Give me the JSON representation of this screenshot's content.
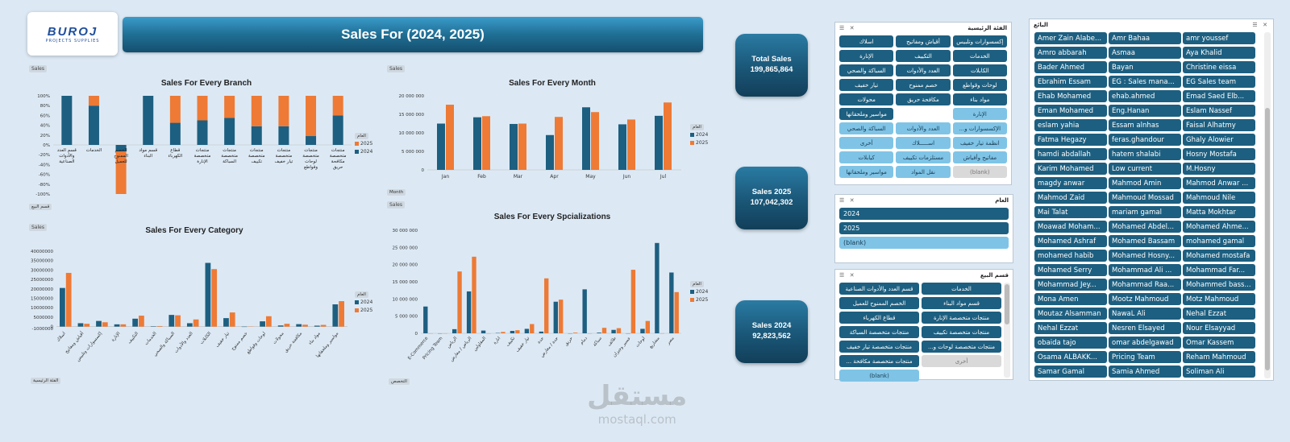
{
  "logo": {
    "main": "BUROJ",
    "sub": "PROJECTS SUPPLIES"
  },
  "title": "Sales For (2024, 2025)",
  "kpis": [
    {
      "label": "Total Sales",
      "value": "199,865,864"
    },
    {
      "label": "Sales 2025",
      "value": "107,042,302"
    },
    {
      "label": "Sales 2024",
      "value": "92,823,562"
    }
  ],
  "tag": "Sales",
  "colors": {
    "y2024": "#1d5f80",
    "y2025": "#ee7a35"
  },
  "charts": {
    "branch": {
      "title": "Sales For Every Branch",
      "filter": "قسم البيع",
      "legend_title": "العام",
      "legend": [
        "2025",
        "2024"
      ],
      "type": "bar",
      "yticks": [
        "100%",
        "80%",
        "60%",
        "40%",
        "20%",
        "0%",
        "-20%",
        "-40%",
        "-60%",
        "-80%",
        "-100%"
      ],
      "categories": [
        "قسم العدد والأدوات الصناعية",
        "الخدمات",
        "الخصم الممنوح للعميل",
        "قسم مواد البناء",
        "قطاع الكهرباء",
        "منتجات متخصصة الإنارة",
        "منتجات متخصصة السباكة",
        "منتجات متخصصة تكييف",
        "منتجات متخصصة تيار خفيف",
        "منتجات متخصصة لوحات وقواطع",
        "منتجات متخصصة مكافحة حريق"
      ],
      "s2024": [
        100,
        80,
        -100,
        100,
        45,
        50,
        55,
        38,
        38,
        18,
        60
      ],
      "s2025": [
        0,
        20,
        0,
        0,
        55,
        50,
        45,
        62,
        62,
        82,
        40
      ]
    },
    "month": {
      "title": "Sales For Every Month",
      "filter": "Month",
      "legend_title": "العام",
      "legend": [
        "2024",
        "2025"
      ],
      "type": "bar",
      "ylim": [
        0,
        20000000
      ],
      "yticks": [
        "20 000 000",
        "15 000 000",
        "10 000 000",
        "5 000 000",
        "0"
      ],
      "categories": [
        "Jan",
        "Feb",
        "Mar",
        "Apr",
        "May",
        "Jun",
        "Jul"
      ],
      "s2024": [
        12500000,
        14200000,
        12400000,
        9400000,
        16900000,
        12300000,
        14600000
      ],
      "s2025": [
        17600000,
        14500000,
        12500000,
        14300000,
        15600000,
        13600000,
        18200000
      ]
    },
    "category": {
      "title": "Sales For Every Category",
      "filter": "الفئة الرئيسية",
      "legend_title": "العام",
      "legend": [
        "2024",
        "2025"
      ],
      "type": "bar",
      "ylim": [
        -1000000,
        40000000
      ],
      "yticks": [
        "40000000",
        "35000000",
        "30000000",
        "25000000",
        "20000000",
        "15000000",
        "10000000",
        "5000000",
        "0",
        "-1000000"
      ],
      "categories": [
        "اسلاك",
        "أقياش ومفاتيح",
        "إكسسوارات وتلبيس",
        "الإنارة",
        "التكييف",
        "الخدمات",
        "السباكة والصحي",
        "العدد والأدوات",
        "الكابلات",
        "تيار خفيف",
        "خصم ممنوح",
        "لوحات وقواطع",
        "محولات",
        "مكافحة حريق",
        "مواد بناء",
        "مواسير وملحقاتها"
      ],
      "s2024": [
        20500000,
        1800000,
        3000000,
        1200000,
        4200000,
        200000,
        6200000,
        1800000,
        33800000,
        4500000,
        -200000,
        2800000,
        600000,
        1300000,
        500000,
        11800000
      ],
      "s2025": [
        28500000,
        1500000,
        2300000,
        1200000,
        5800000,
        300000,
        6000000,
        3800000,
        30500000,
        7500000,
        -100000,
        5500000,
        1500000,
        1000000,
        900000,
        13500000
      ]
    },
    "spec": {
      "title": "Sales For Every Spcializations",
      "filter": "التخصص",
      "legend_title": "العام",
      "legend": [
        "2024",
        "2025"
      ],
      "type": "bar",
      "ylim": [
        0,
        30000000
      ],
      "yticks": [
        "30 000 000",
        "25 000 000",
        "20 000 000",
        "15 000 000",
        "10 000 000",
        "5 000 000",
        "0"
      ],
      "categories": [
        "E-Commerce",
        "Pricing Team",
        "الرياض",
        "الرياض / معارض",
        "المقاولين",
        "انارة",
        "تكييف",
        "تيار خفيف",
        "جدة",
        "جدة / معارض",
        "حريق",
        "دمام",
        "سباكة",
        "طائف",
        "عسير وجيزان",
        "لوحات",
        "مشاريع",
        "مصر"
      ],
      "s2024": [
        7800000,
        0,
        1200000,
        12200000,
        800000,
        100000,
        700000,
        1300000,
        500000,
        9200000,
        0,
        12800000,
        200000,
        1000000,
        0,
        1300000,
        26300000,
        17700000
      ],
      "s2025": [
        0,
        0,
        18000000,
        22300000,
        0,
        400000,
        900000,
        2700000,
        16000000,
        9800000,
        200000,
        0,
        1600000,
        1500000,
        18500000,
        3600000,
        0,
        12000000
      ]
    }
  },
  "slicers": {
    "category": {
      "title": "الفئة الرئيسية",
      "items": [
        {
          "label": "إكسسوارات وتلبيس",
          "style": "dark"
        },
        {
          "label": "أقياش ومفاتيح",
          "style": "dark"
        },
        {
          "label": "اسلاك",
          "style": "dark"
        },
        {
          "label": "الخدمات",
          "style": "dark"
        },
        {
          "label": "التكييف",
          "style": "dark"
        },
        {
          "label": "الإنارة",
          "style": "dark"
        },
        {
          "label": "الكابلات",
          "style": "dark"
        },
        {
          "label": "العدد والأدوات",
          "style": "dark"
        },
        {
          "label": "السباكة والصحي",
          "style": "dark"
        },
        {
          "label": "لوحات وقواطع",
          "style": "dark"
        },
        {
          "label": "خصم ممنوح",
          "style": "dark"
        },
        {
          "label": "تيار خفيف",
          "style": "dark"
        },
        {
          "label": "مواد بناء",
          "style": "dark"
        },
        {
          "label": "مكافحة حريق",
          "style": "dark"
        },
        {
          "label": "محولات",
          "style": "dark"
        },
        {
          "label": "الإنارة",
          "style": "light"
        },
        {
          "label": "",
          "style": "none"
        },
        {
          "label": "مواسير وملحقاتها",
          "style": "dark"
        },
        {
          "label": "الإكسسوارات و...",
          "style": "light"
        },
        {
          "label": "العدد والأدوات",
          "style": "light"
        },
        {
          "label": "السباكة والصحي",
          "style": "light"
        },
        {
          "label": "انظمة تيار خفيف",
          "style": "light"
        },
        {
          "label": "اســـــلاك",
          "style": "light"
        },
        {
          "label": "أخرى",
          "style": "light"
        },
        {
          "label": "مفاتيح وأفياش",
          "style": "light"
        },
        {
          "label": "مستلزمات تكييف",
          "style": "light"
        },
        {
          "label": "كيابلات",
          "style": "light"
        },
        {
          "label": "(blank)",
          "style": "gray"
        },
        {
          "label": "نقل المواد",
          "style": "light"
        },
        {
          "label": "مواسير وملحقاتها",
          "style": "light"
        }
      ]
    },
    "year": {
      "title": "العام",
      "items": [
        {
          "label": "2024",
          "style": "dark"
        },
        {
          "label": "2025",
          "style": "dark"
        },
        {
          "label": "(blank)",
          "style": "light"
        }
      ]
    },
    "branch": {
      "title": "قسم البيع",
      "items": [
        {
          "label": "الخدمات",
          "style": "dark"
        },
        {
          "label": "قسم العدد والأدوات الصناعية",
          "style": "dark"
        },
        {
          "label": "قسم مواد البناء",
          "style": "dark"
        },
        {
          "label": "الخصم الممنوح للعميل",
          "style": "dark"
        },
        {
          "label": "منتجات متخصصة الإنارة",
          "style": "dark"
        },
        {
          "label": "قطاع الكهرباء",
          "style": "dark"
        },
        {
          "label": "منتجات متخصصة تكييف",
          "style": "dark"
        },
        {
          "label": "منتجات متخصصة السباكة",
          "style": "dark"
        },
        {
          "label": "منتجات متخصصة لوحات و...",
          "style": "dark"
        },
        {
          "label": "منتجات متخصصة تيار خفيف",
          "style": "dark"
        },
        {
          "label": "أخرى",
          "style": "gray"
        },
        {
          "label": "منتجات متخصصة مكافحة ...",
          "style": "dark"
        },
        {
          "label": "",
          "style": "none"
        },
        {
          "label": "(blank)",
          "style": "light"
        }
      ]
    },
    "seller": {
      "title": "البائع",
      "items": [
        "Amer Zain Alabe...",
        "Amr Bahaa",
        "amr youssef",
        "Amro abbarah",
        "Asmaa",
        "Aya Khalid",
        "Bader Ahmed",
        "Bayan",
        "Christine eissa",
        "Ebrahim Essam",
        "EG : Sales mana...",
        "EG Sales team",
        "Ehab Mohamed",
        "ehab.ahmed",
        "Emad Saed Elb...",
        "Eman Mohamed",
        "Eng.Hanan",
        "Eslam Nassef",
        "eslam yahia",
        "Essam alnhas",
        "Faisal Alhatmy",
        "Fatma Hegazy",
        "feras.ghandour",
        "Ghaly Alowier",
        "hamdi abdallah",
        "hatem shalabi",
        "Hosny Mostafa",
        "Karim Mohamed",
        "Low current",
        "M.Hosny",
        "magdy anwar",
        "Mahmod Amin",
        "Mahmod Anwar ...",
        "Mahmod Zaid",
        "Mahmoud Mossad",
        "Mahmoud Nile",
        "Mai Talat",
        "mariam gamal",
        "Matta Mokhtar",
        "Moawad Moham...",
        "Mohamed Abdel...",
        "Mohamed Ahme...",
        "Mohamed Ashraf",
        "Mohamed Bassam",
        "mohamed gamal",
        "mohamed habib",
        "Mohamed Hosny...",
        "Mohamed mostafa",
        "Mohamed Serry",
        "Mohammad Ali ...",
        "Mohammad Far...",
        "Mohammad Jey...",
        "Mohammad Raa...",
        "Mohammed bass...",
        "Mona Amen",
        "Mootz Mahmoud",
        "Motz Mahmoud",
        "Moutaz Alsamman",
        "NawaL Ali",
        "Nehal Ezzat",
        "Nehal Ezzat",
        "Nesren Elsayed",
        "Nour Elsayyad",
        "obaida tajo",
        "omar abdelgawad",
        "Omar Kassem",
        "Osama ALBAKK...",
        "Pricing Team",
        "Reham Mahmoud",
        "Samar Gamal",
        "Samia Ahmed",
        "Soliman Ali"
      ]
    }
  },
  "watermark": {
    "ar": "مستقل",
    "en": "mostaql.com"
  }
}
